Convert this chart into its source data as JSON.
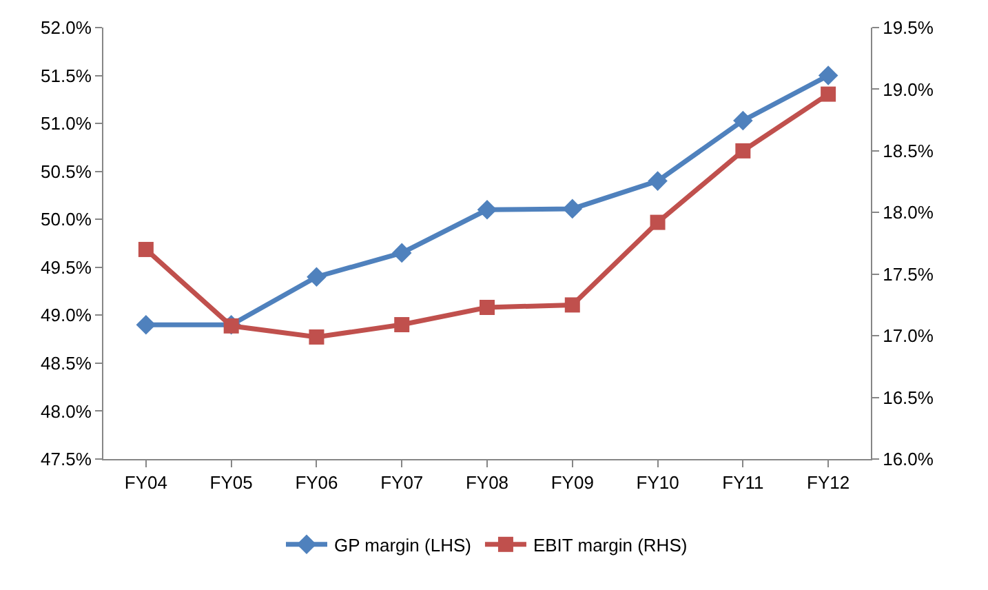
{
  "chart_data": {
    "type": "line",
    "categories": [
      "FY04",
      "FY05",
      "FY06",
      "FY07",
      "FY08",
      "FY09",
      "FY10",
      "FY11",
      "FY12"
    ],
    "series": [
      {
        "name": "GP margin (LHS)",
        "color": "#4f81bd",
        "marker": "diamond",
        "values": [
          48.9,
          48.9,
          49.4,
          49.65,
          50.1,
          50.11,
          50.4,
          51.03,
          51.5
        ]
      },
      {
        "name": "EBIT margin (RHS)",
        "color": "#c0504d",
        "marker": "square",
        "axis": "y2",
        "values": [
          17.7,
          17.08,
          16.99,
          17.09,
          17.23,
          17.25,
          17.92,
          18.5,
          18.96
        ]
      }
    ],
    "ylim": [
      47.5,
      52.0
    ],
    "yticks": [
      {
        "value": 47.5,
        "label": "47.5%"
      },
      {
        "value": 48.0,
        "label": "48.0%"
      },
      {
        "value": 48.5,
        "label": "48.5%"
      },
      {
        "value": 49.0,
        "label": "49.0%"
      },
      {
        "value": 49.5,
        "label": "49.5%"
      },
      {
        "value": 50.0,
        "label": "50.0%"
      },
      {
        "value": 50.5,
        "label": "50.5%"
      },
      {
        "value": 51.0,
        "label": "51.0%"
      },
      {
        "value": 51.5,
        "label": "51.5%"
      },
      {
        "value": 52.0,
        "label": "52.0%"
      }
    ],
    "y2lim": [
      16.0,
      19.5
    ],
    "y2ticks": [
      {
        "value": 16.0,
        "label": "16.0%"
      },
      {
        "value": 16.5,
        "label": "16.5%"
      },
      {
        "value": 17.0,
        "label": "17.0%"
      },
      {
        "value": 17.5,
        "label": "17.5%"
      },
      {
        "value": 18.0,
        "label": "18.0%"
      },
      {
        "value": 18.5,
        "label": "18.5%"
      },
      {
        "value": 19.0,
        "label": "19.0%"
      },
      {
        "value": 19.5,
        "label": "19.5%"
      }
    ],
    "grid": false,
    "legend": "bottom",
    "line_style": "solid"
  }
}
